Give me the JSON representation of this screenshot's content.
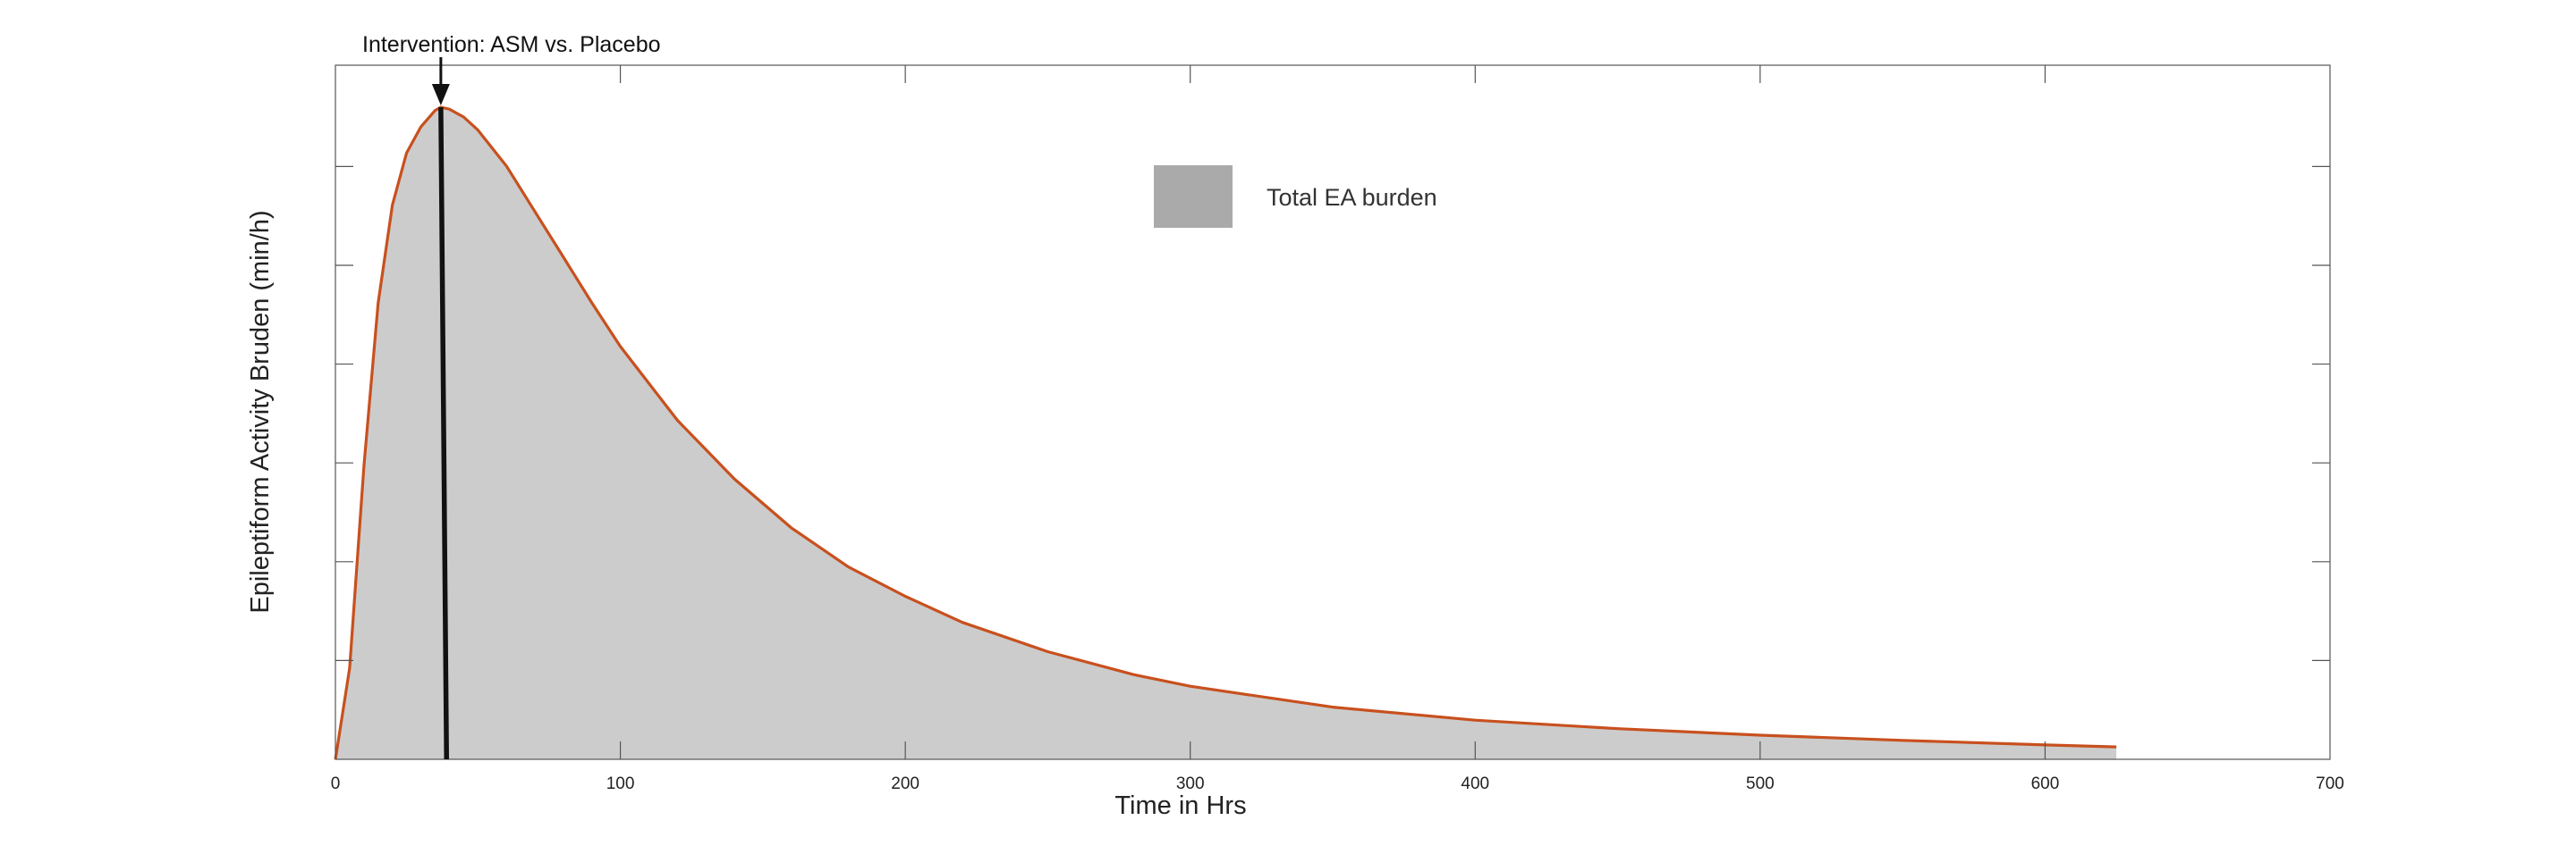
{
  "chart_data": {
    "type": "area",
    "title": "",
    "xlabel": "Time in Hrs",
    "ylabel": "Epileptiform Activity Bruden (min/h)",
    "xlim": [
      0,
      700
    ],
    "ylim": [
      0,
      1
    ],
    "x_ticks": [
      0,
      100,
      200,
      300,
      400,
      500,
      600,
      700
    ],
    "y_ticks_labeled": false,
    "grid": false,
    "legend": {
      "placement": "top-center",
      "entries": [
        {
          "label": "Total EA burden",
          "color": "#aaaaaa"
        }
      ]
    },
    "series": [
      {
        "name": "Total EA burden",
        "line_color": "#c8501e",
        "fill_color": "#cccccc",
        "x": [
          0,
          5,
          10,
          15,
          20,
          25,
          30,
          35,
          37,
          40,
          45,
          50,
          60,
          70,
          80,
          90,
          100,
          120,
          140,
          160,
          180,
          200,
          220,
          250,
          280,
          300,
          350,
          400,
          450,
          500,
          550,
          600,
          625
        ],
        "y": [
          0,
          0.14,
          0.45,
          0.7,
          0.85,
          0.93,
          0.97,
          0.995,
          1.0,
          0.997,
          0.985,
          0.965,
          0.91,
          0.84,
          0.77,
          0.7,
          0.633,
          0.52,
          0.43,
          0.355,
          0.295,
          0.25,
          0.21,
          0.165,
          0.13,
          0.112,
          0.08,
          0.06,
          0.047,
          0.037,
          0.029,
          0.022,
          0.019
        ]
      }
    ],
    "annotations": [
      {
        "text": "Intervention: ASM vs. Placebo",
        "x_start": 37,
        "x_end": 39
      }
    ]
  }
}
